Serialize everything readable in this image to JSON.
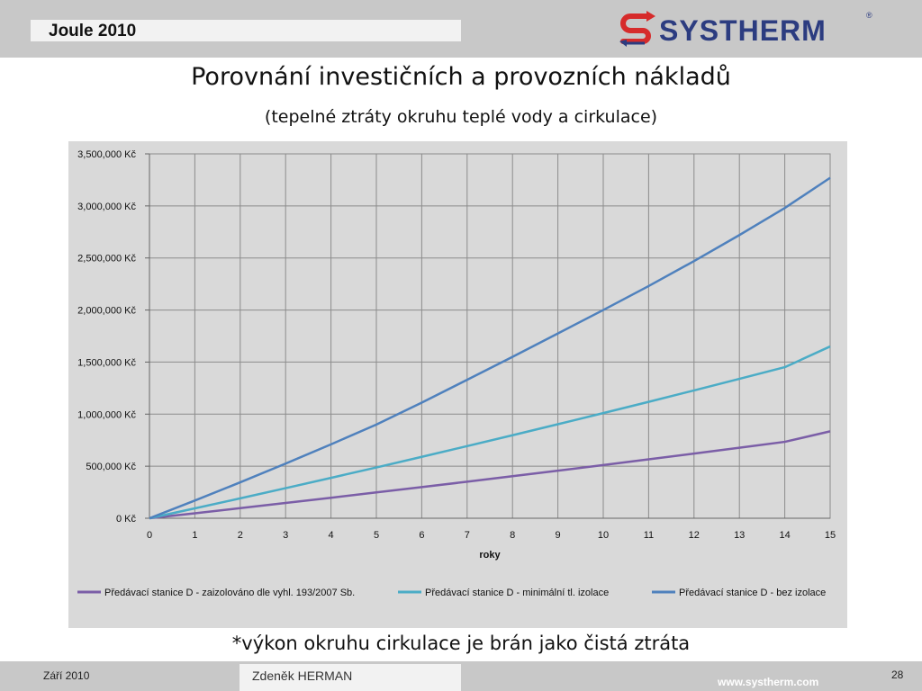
{
  "header": {
    "title": "Joule 2010",
    "logo_text": "SYSTHERM",
    "logo_mark": "®"
  },
  "slide": {
    "title": "Porovnání investičních a provozních nákladů",
    "subtitle": "(tepelné ztráty okruhu teplé vody a cirkulace)",
    "note": "*výkon okruhu cirkulace je brán jako čistá ztráta"
  },
  "footer": {
    "date": "Září 2010",
    "author": "Zdeněk HERMAN",
    "url": "www.systherm.com",
    "page": "28"
  },
  "chart_data": {
    "type": "line",
    "title": "",
    "xlabel": "roky",
    "ylabel": "",
    "x": [
      0,
      1,
      2,
      3,
      4,
      5,
      6,
      7,
      8,
      9,
      10,
      11,
      12,
      13,
      14,
      15
    ],
    "xlim": [
      0,
      15
    ],
    "ylim": [
      0,
      3500000
    ],
    "y_ticks": [
      0,
      500000,
      1000000,
      1500000,
      2000000,
      2500000,
      3000000,
      3500000
    ],
    "y_tick_labels": [
      "0 Kč",
      "500,000 Kč",
      "1,000,000 Kč",
      "1,500,000 Kč",
      "2,000,000 Kč",
      "2,500,000 Kč",
      "3,000,000 Kč",
      "3,500,000 Kč"
    ],
    "x_tick_labels": [
      "0",
      "1",
      "2",
      "3",
      "4",
      "5",
      "6",
      "7",
      "8",
      "9",
      "10",
      "11",
      "12",
      "13",
      "14",
      "15"
    ],
    "grid": true,
    "legend_position": "bottom",
    "series": [
      {
        "name": "Předávací stanice D - zaizolováno dle vyhl. 193/2007 Sb.",
        "color": "#7b5ea7",
        "values": [
          0,
          48000,
          97000,
          147000,
          197000,
          248000,
          299000,
          351000,
          404000,
          457000,
          511000,
          566000,
          621000,
          677000,
          734000,
          835000
        ]
      },
      {
        "name": "Předávací stanice D - minimální tl. izolace",
        "color": "#4bacc6",
        "values": [
          0,
          95000,
          191000,
          289000,
          388000,
          488000,
          590000,
          693000,
          797000,
          903000,
          1010000,
          1118000,
          1228000,
          1339000,
          1451000,
          1650000
        ]
      },
      {
        "name": "Předávací stanice D - bez izolace",
        "color": "#4f81bd",
        "values": [
          0,
          170000,
          345000,
          525000,
          710000,
          900000,
          1110000,
          1330000,
          1550000,
          1775000,
          2000000,
          2230000,
          2470000,
          2720000,
          2980000,
          3270000
        ]
      }
    ]
  }
}
